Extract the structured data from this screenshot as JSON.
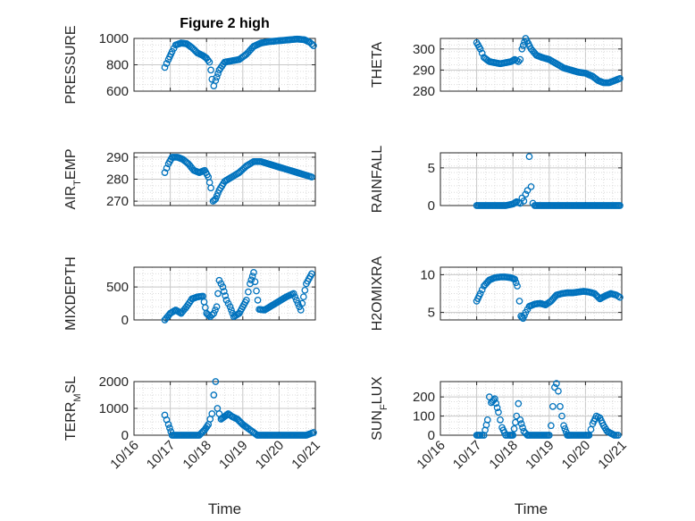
{
  "figure": {
    "title": "Figure 2 high",
    "marker_color": "#0072BD",
    "grid": "on, dotted minor"
  },
  "chart_data": [
    {
      "type": "scatter",
      "panel": "top-left",
      "title": "Figure 2 high",
      "ylabel": "PRESSURE",
      "xlim": [
        "10/16",
        "10/21"
      ],
      "ylim": [
        600,
        1000
      ],
      "yticks": [
        "600",
        "800",
        "1000"
      ],
      "x": [
        16.85,
        16.95,
        17.05,
        17.15,
        17.3,
        17.45,
        17.6,
        17.75,
        17.9,
        18.0,
        18.08,
        18.12,
        18.15,
        18.2,
        18.25,
        18.35,
        18.5,
        18.7,
        18.9,
        19.1,
        19.3,
        19.5,
        19.7,
        19.9,
        20.1,
        20.3,
        20.5,
        20.7,
        20.85,
        20.95
      ],
      "y": [
        780,
        840,
        900,
        950,
        965,
        960,
        930,
        890,
        870,
        850,
        820,
        760,
        690,
        640,
        680,
        760,
        820,
        830,
        840,
        880,
        940,
        965,
        975,
        980,
        985,
        990,
        995,
        990,
        970,
        945
      ]
    },
    {
      "type": "scatter",
      "panel": "top-right",
      "ylabel": "THETA",
      "xlim": [
        "10/16",
        "10/21"
      ],
      "ylim": [
        280,
        305
      ],
      "yticks": [
        "280",
        "290",
        "300"
      ],
      "x": [
        17.0,
        17.1,
        17.2,
        17.35,
        17.5,
        17.65,
        17.8,
        17.95,
        18.05,
        18.15,
        18.2,
        18.25,
        18.35,
        18.5,
        18.65,
        18.8,
        19.0,
        19.2,
        19.4,
        19.6,
        19.8,
        20.0,
        20.2,
        20.35,
        20.5,
        20.65,
        20.8,
        20.95
      ],
      "y": [
        303,
        300,
        296,
        294,
        293.5,
        293,
        293.5,
        294,
        295,
        294,
        295,
        300,
        305,
        300,
        297,
        296,
        295,
        293,
        291,
        290,
        289,
        288.5,
        287,
        285,
        284,
        284,
        285,
        286
      ]
    },
    {
      "type": "scatter",
      "panel": "second-left",
      "ylabel": "AIR_TEMP",
      "xlim": [
        "10/16",
        "10/21"
      ],
      "ylim": [
        268,
        292
      ],
      "yticks": [
        "270",
        "280",
        "290"
      ],
      "x": [
        16.85,
        16.95,
        17.05,
        17.2,
        17.35,
        17.5,
        17.65,
        17.8,
        17.95,
        18.05,
        18.12,
        18.18,
        18.25,
        18.35,
        18.5,
        18.7,
        18.9,
        19.1,
        19.3,
        19.5,
        19.7,
        19.9,
        20.1,
        20.3,
        20.5,
        20.7,
        20.9
      ],
      "y": [
        283,
        287,
        290,
        290,
        289,
        287,
        284,
        283,
        284,
        281,
        276,
        270,
        271,
        275,
        279,
        281,
        283,
        286,
        288,
        288,
        287,
        286,
        285,
        284,
        283,
        282,
        281
      ]
    },
    {
      "type": "scatter",
      "panel": "second-right",
      "ylabel": "RAINFALL",
      "xlim": [
        "10/16",
        "10/21"
      ],
      "ylim": [
        0,
        7
      ],
      "yticks": [
        "0",
        "5"
      ],
      "x": [
        17.0,
        17.2,
        17.4,
        17.6,
        17.8,
        18.0,
        18.1,
        18.2,
        18.25,
        18.3,
        18.35,
        18.4,
        18.45,
        18.5,
        18.55,
        18.6,
        18.8,
        19.0,
        19.2,
        19.4,
        19.6,
        19.8,
        20.0,
        20.2,
        20.4,
        20.6,
        20.8,
        20.95
      ],
      "y": [
        0,
        0,
        0,
        0,
        0,
        0.2,
        0.5,
        0.3,
        1.0,
        0.6,
        1.5,
        2.0,
        6.5,
        2.5,
        0.3,
        0,
        0,
        0,
        0,
        0,
        0,
        0,
        0,
        0,
        0,
        0,
        0,
        0
      ]
    },
    {
      "type": "scatter",
      "panel": "third-left",
      "ylabel": "MIXDEPTH",
      "xlim": [
        "10/16",
        "10/21"
      ],
      "ylim": [
        0,
        800
      ],
      "yticks": [
        "0",
        "500"
      ],
      "x": [
        16.85,
        17.0,
        17.15,
        17.3,
        17.45,
        17.6,
        17.75,
        17.9,
        18.0,
        18.1,
        18.2,
        18.28,
        18.35,
        18.45,
        18.55,
        18.65,
        18.75,
        18.9,
        19.0,
        19.1,
        19.2,
        19.3,
        19.45,
        19.6,
        19.75,
        19.9,
        20.05,
        20.2,
        20.4,
        20.6,
        20.75,
        20.9
      ],
      "y": [
        0,
        100,
        150,
        100,
        200,
        320,
        350,
        360,
        100,
        50,
        100,
        200,
        600,
        500,
        300,
        200,
        50,
        100,
        200,
        300,
        550,
        720,
        160,
        150,
        200,
        250,
        300,
        350,
        400,
        150,
        550,
        700
      ]
    },
    {
      "type": "scatter",
      "panel": "third-right",
      "ylabel": "H2OMIXRA",
      "xlim": [
        "10/16",
        "10/21"
      ],
      "ylim": [
        4,
        11
      ],
      "yticks": [
        "5",
        "10"
      ],
      "x": [
        17.0,
        17.1,
        17.2,
        17.35,
        17.5,
        17.65,
        17.8,
        17.95,
        18.05,
        18.12,
        18.18,
        18.22,
        18.28,
        18.35,
        18.45,
        18.6,
        18.75,
        18.9,
        19.05,
        19.2,
        19.35,
        19.5,
        19.65,
        19.8,
        19.95,
        20.1,
        20.25,
        20.4,
        20.55,
        20.7,
        20.85,
        20.95
      ],
      "y": [
        6.5,
        7.5,
        8.5,
        9.3,
        9.6,
        9.7,
        9.7,
        9.6,
        9.4,
        8.5,
        6.5,
        4.5,
        4.2,
        5,
        5.8,
        6.1,
        6.2,
        6.0,
        6.5,
        7.3,
        7.5,
        7.6,
        7.6,
        7.7,
        7.8,
        7.7,
        7.5,
        6.8,
        7.2,
        7.5,
        7.3,
        7.0
      ]
    },
    {
      "type": "scatter",
      "panel": "bottom-left",
      "ylabel": "TERR_MSL",
      "xlim": [
        "10/16",
        "10/21"
      ],
      "ylim": [
        0,
        2000
      ],
      "yticks": [
        "0",
        "1000",
        "2000"
      ],
      "xticks": [
        "10/16",
        "10/17",
        "10/18",
        "10/19",
        "10/20",
        "10/21"
      ],
      "xlabel": "Time",
      "x": [
        16.85,
        16.95,
        17.05,
        17.2,
        17.4,
        17.6,
        17.8,
        17.95,
        18.05,
        18.15,
        18.2,
        18.25,
        18.3,
        18.4,
        18.5,
        18.6,
        18.7,
        18.85,
        19.0,
        19.1,
        19.2,
        19.4,
        19.6,
        19.8,
        20.0,
        20.2,
        20.4,
        20.6,
        20.75,
        20.85,
        20.95
      ],
      "y": [
        750,
        400,
        0,
        0,
        0,
        0,
        0,
        200,
        400,
        800,
        1500,
        2000,
        1000,
        600,
        700,
        800,
        700,
        600,
        400,
        300,
        200,
        0,
        0,
        0,
        0,
        0,
        0,
        0,
        0,
        50,
        100
      ]
    },
    {
      "type": "scatter",
      "panel": "bottom-right",
      "ylabel": "SUN_FLUX",
      "xlim": [
        "10/16",
        "10/21"
      ],
      "ylim": [
        0,
        280
      ],
      "yticks": [
        "0",
        "100",
        "200"
      ],
      "xticks": [
        "10/16",
        "10/17",
        "10/18",
        "10/19",
        "10/20",
        "10/21"
      ],
      "xlabel": "Time",
      "x": [
        17.0,
        17.1,
        17.2,
        17.3,
        17.35,
        17.4,
        17.5,
        17.6,
        17.7,
        17.8,
        17.9,
        18.0,
        18.1,
        18.15,
        18.2,
        18.3,
        18.4,
        18.6,
        18.8,
        19.0,
        19.05,
        19.1,
        19.15,
        19.2,
        19.25,
        19.3,
        19.4,
        19.5,
        19.6,
        19.8,
        20.0,
        20.1,
        20.2,
        20.3,
        20.4,
        20.5,
        20.6,
        20.7,
        20.8,
        20.9
      ],
      "y": [
        0,
        0,
        0,
        80,
        200,
        170,
        190,
        120,
        40,
        0,
        0,
        0,
        100,
        165,
        80,
        20,
        0,
        0,
        0,
        0,
        50,
        150,
        250,
        270,
        230,
        150,
        50,
        0,
        0,
        0,
        0,
        0,
        60,
        100,
        90,
        50,
        20,
        10,
        0,
        0
      ]
    }
  ]
}
